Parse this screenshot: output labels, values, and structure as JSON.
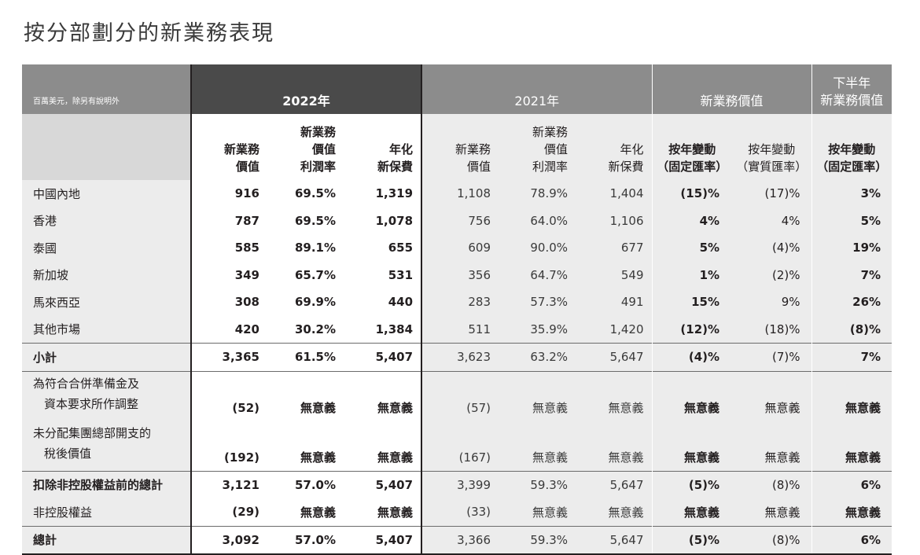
{
  "title": "按分部劃分的新業務表現",
  "header": {
    "unit_note": "百萬美元，除另有說明外",
    "group_2022": "2022年",
    "group_2021": "2021年",
    "group_nbv": "新業務價值",
    "group_h2_line1": "下半年",
    "group_h2_line2": "新業務價值"
  },
  "subheaders": {
    "y22": [
      {
        "line1": "",
        "line2": "新業務",
        "line3": "價值"
      },
      {
        "line1": "新業務",
        "line2": "價值",
        "line3": "利潤率"
      },
      {
        "line1": "",
        "line2": "年化",
        "line3": "新保費"
      }
    ],
    "y21": [
      {
        "line1": "",
        "line2": "新業務",
        "line3": "價值"
      },
      {
        "line1": "新業務",
        "line2": "價值",
        "line3": "利潤率"
      },
      {
        "line1": "",
        "line2": "年化",
        "line3": "新保費"
      }
    ],
    "chg_const": {
      "line1": "按年變動",
      "line2": "（固定匯率）"
    },
    "chg_actual": {
      "line1": "按年變動",
      "line2": "（實質匯率）"
    },
    "h2_chg": {
      "line1": "按年變動",
      "line2": "（固定匯率）"
    }
  },
  "rows": [
    {
      "label": "中國內地",
      "v": [
        "916",
        "69.5%",
        "1,319",
        "1,108",
        "78.9%",
        "1,404",
        "(15)%",
        "(17)%",
        "3%"
      ]
    },
    {
      "label": "香港",
      "v": [
        "787",
        "69.5%",
        "1,078",
        "756",
        "64.0%",
        "1,106",
        "4%",
        "4%",
        "5%"
      ]
    },
    {
      "label": "泰國",
      "v": [
        "585",
        "89.1%",
        "655",
        "609",
        "90.0%",
        "677",
        "5%",
        "(4)%",
        "19%"
      ]
    },
    {
      "label": "新加坡",
      "v": [
        "349",
        "65.7%",
        "531",
        "356",
        "64.7%",
        "549",
        "1%",
        "(2)%",
        "7%"
      ]
    },
    {
      "label": "馬來西亞",
      "v": [
        "308",
        "69.9%",
        "440",
        "283",
        "57.3%",
        "491",
        "15%",
        "9%",
        "26%"
      ]
    },
    {
      "label": "其他市場",
      "v": [
        "420",
        "30.2%",
        "1,384",
        "511",
        "35.9%",
        "1,420",
        "(12)%",
        "(18)%",
        "(8)%"
      ]
    },
    {
      "label": "小計",
      "v": [
        "3,365",
        "61.5%",
        "5,407",
        "3,623",
        "63.2%",
        "5,647",
        "(4)%",
        "(7)%",
        "7%"
      ]
    },
    {
      "label": "為符合合併準備金及",
      "label2": "資本要求所作調整",
      "v": [
        "(52)",
        "無意義",
        "無意義",
        "(57)",
        "無意義",
        "無意義",
        "無意義",
        "無意義",
        "無意義"
      ]
    },
    {
      "label": "未分配集團總部開支的",
      "label2": "稅後價值",
      "v": [
        "(192)",
        "無意義",
        "無意義",
        "(167)",
        "無意義",
        "無意義",
        "無意義",
        "無意義",
        "無意義"
      ]
    },
    {
      "label": "扣除非控股權益前的總計",
      "v": [
        "3,121",
        "57.0%",
        "5,407",
        "3,399",
        "59.3%",
        "5,647",
        "(5)%",
        "(8)%",
        "6%"
      ]
    },
    {
      "label": "非控股權益",
      "v": [
        "(29)",
        "無意義",
        "無意義",
        "(33)",
        "無意義",
        "無意義",
        "無意義",
        "無意義",
        "無意義"
      ]
    },
    {
      "label": "總計",
      "v": [
        "3,092",
        "57.0%",
        "5,407",
        "3,366",
        "59.3%",
        "5,647",
        "(5)%",
        "(8)%",
        "6%"
      ]
    }
  ]
}
